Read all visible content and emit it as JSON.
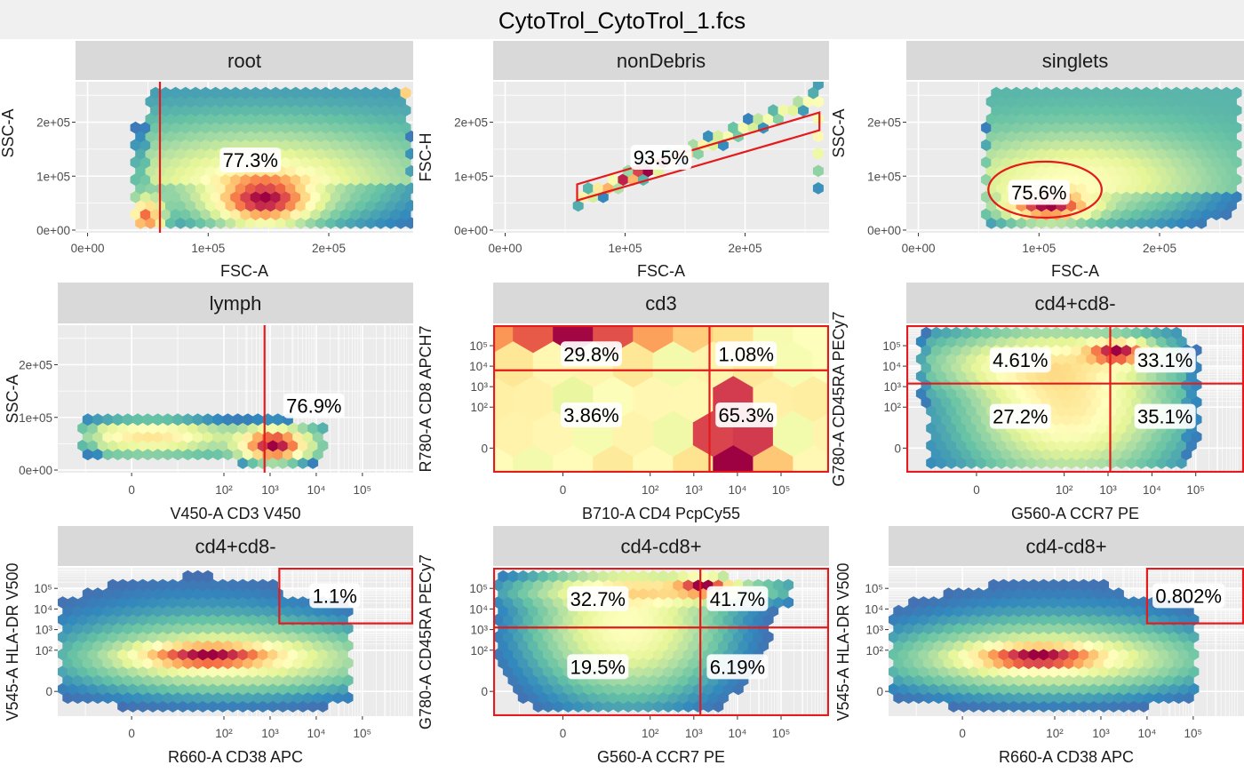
{
  "title": "CytoTrol_CytoTrol_1.fcs",
  "colors": {
    "strip_bg": "#D9D9D9",
    "panel_bg": "#EBEBEB",
    "grid": "#FFFFFF",
    "gate": "#E41A1C",
    "title_bg": "#F0F0F0",
    "density_low": "#5E4FA2",
    "density_mid": "#FFFFBF",
    "density_high": "#9E0142"
  },
  "chart_data": [
    {
      "type": "heatmap",
      "strip": "root",
      "xlabel": "FSC-A",
      "ylabel": "SSC-A",
      "x_ticks": [
        "0e+00",
        "1e+05",
        "2e+05"
      ],
      "y_ticks": [
        "0e+00",
        "1e+05",
        "2e+05"
      ],
      "xlim": [
        -10000,
        270000
      ],
      "ylim": [
        -5000,
        275000
      ],
      "gate": {
        "kind": "vline",
        "x": 60000
      },
      "labels": [
        {
          "text": "77.3%",
          "x": 135000,
          "y": 130000
        }
      ]
    },
    {
      "type": "heatmap",
      "strip": "nonDebris",
      "xlabel": "FSC-A",
      "ylabel": "FSC-H",
      "x_ticks": [
        "0e+00",
        "1e+05",
        "2e+05"
      ],
      "y_ticks": [
        "0e+00",
        "1e+05",
        "2e+05"
      ],
      "xlim": [
        -10000,
        270000
      ],
      "ylim": [
        -5000,
        275000
      ],
      "gate": {
        "kind": "polygon",
        "points": [
          [
            60000,
            55000
          ],
          [
            60000,
            85000
          ],
          [
            262000,
            218000
          ],
          [
            262000,
            185000
          ]
        ]
      },
      "labels": [
        {
          "text": "93.5%",
          "x": 130000,
          "y": 135000
        }
      ]
    },
    {
      "type": "heatmap",
      "strip": "singlets",
      "xlabel": "FSC-A",
      "ylabel": "SSC-A",
      "x_ticks": [
        "0e+00",
        "1e+05",
        "2e+05"
      ],
      "y_ticks": [
        "0e+00",
        "1e+05",
        "2e+05"
      ],
      "xlim": [
        -10000,
        270000
      ],
      "ylim": [
        -5000,
        275000
      ],
      "gate": {
        "kind": "ellipse",
        "cx": 105000,
        "cy": 75000,
        "rx": 47000,
        "ry": 52000
      },
      "labels": [
        {
          "text": "75.6%",
          "x": 100000,
          "y": 70000
        }
      ]
    },
    {
      "type": "heatmap",
      "strip": "lymph",
      "xlabel": "V450-A CD3 V450",
      "ylabel": "SSC-A",
      "x_ticks": [
        "0",
        "10²",
        "10³",
        "10⁴",
        "10⁵"
      ],
      "y_ticks": [
        "0e+00",
        "1e+05",
        "2e+05"
      ],
      "xlim": [
        -1.6,
        6.1
      ],
      "ylim": [
        -5000,
        275000
      ],
      "gate": {
        "kind": "vline",
        "x": 2.88
      },
      "labels": [
        {
          "text": "76.9%",
          "x": 3.95,
          "y": 122000
        }
      ]
    },
    {
      "type": "heatmap",
      "strip": "cd3",
      "xlabel": "B710-A CD4 PcpCy55",
      "ylabel": "R780-A CD8 APCH7",
      "x_ticks": [
        "0",
        "10²",
        "10³",
        "10⁴",
        "10⁵"
      ],
      "y_ticks": [
        "0",
        "10²",
        "10³",
        "10⁴",
        "10⁵"
      ],
      "xlim": [
        -1.6,
        6.1
      ],
      "ylim": [
        -1.2,
        6.0
      ],
      "gate": {
        "kind": "quad",
        "x": 3.36,
        "y": 3.8
      },
      "labels": [
        {
          "text": "29.8%",
          "x": 0.65,
          "y": 4.6
        },
        {
          "text": "1.08%",
          "x": 4.2,
          "y": 4.6
        },
        {
          "text": "3.86%",
          "x": 0.65,
          "y": 1.62
        },
        {
          "text": "65.3%",
          "x": 4.2,
          "y": 1.62
        }
      ]
    },
    {
      "type": "heatmap",
      "strip": "cd4+cd8-",
      "xlabel": "G560-A CCR7 PE",
      "ylabel": "G780-A CD45RA PECy7",
      "x_ticks": [
        "0",
        "10²",
        "10³",
        "10⁴",
        "10⁵"
      ],
      "y_ticks": [
        "0",
        "10²",
        "10³",
        "10⁴",
        "10⁵"
      ],
      "xlim": [
        -1.6,
        6.1
      ],
      "ylim": [
        -1.2,
        6.0
      ],
      "gate": {
        "kind": "quad",
        "x": 3.05,
        "y": 3.15
      },
      "labels": [
        {
          "text": "4.61%",
          "x": 1.0,
          "y": 4.3
        },
        {
          "text": "33.1%",
          "x": 4.3,
          "y": 4.3
        },
        {
          "text": "27.2%",
          "x": 1.0,
          "y": 1.55
        },
        {
          "text": "35.1%",
          "x": 4.3,
          "y": 1.55
        }
      ]
    },
    {
      "type": "heatmap",
      "strip": "cd4+cd8-",
      "xlabel": "R660-A CD38 APC",
      "ylabel": "V545-A HLA-DR V500",
      "x_ticks": [
        "0",
        "10²",
        "10³",
        "10⁴",
        "10⁵"
      ],
      "y_ticks": [
        "0",
        "10²",
        "10³",
        "10⁴",
        "10⁵"
      ],
      "xlim": [
        -1.6,
        6.1
      ],
      "ylim": [
        -1.2,
        6.0
      ],
      "gate": {
        "kind": "rect",
        "x1": 3.2,
        "x2": 6.1,
        "y1": 3.3,
        "y2": 6.0
      },
      "labels": [
        {
          "text": "1.1%",
          "x": 4.4,
          "y": 4.65
        }
      ]
    },
    {
      "type": "heatmap",
      "strip": "cd4-cd8+",
      "xlabel": "G560-A CCR7 PE",
      "ylabel": "G780-A CD45RA PECy7",
      "x_ticks": [
        "0",
        "10²",
        "10³",
        "10⁴",
        "10⁵"
      ],
      "y_ticks": [
        "0",
        "10²",
        "10³",
        "10⁴",
        "10⁵"
      ],
      "xlim": [
        -1.6,
        6.1
      ],
      "ylim": [
        -1.2,
        6.0
      ],
      "gate": {
        "kind": "quad",
        "x": 3.15,
        "y": 3.1
      },
      "labels": [
        {
          "text": "32.7%",
          "x": 0.8,
          "y": 4.5
        },
        {
          "text": "41.7%",
          "x": 4.0,
          "y": 4.5
        },
        {
          "text": "19.5%",
          "x": 0.8,
          "y": 1.2
        },
        {
          "text": "6.19%",
          "x": 4.0,
          "y": 1.2
        }
      ]
    },
    {
      "type": "heatmap",
      "strip": "cd4-cd8+",
      "xlabel": "R660-A CD38 APC",
      "ylabel": "V545-A HLA-DR V500",
      "x_ticks": [
        "0",
        "10²",
        "10³",
        "10⁴",
        "10⁵"
      ],
      "y_ticks": [
        "0",
        "10²",
        "10³",
        "10⁴",
        "10⁵"
      ],
      "xlim": [
        -1.6,
        6.1
      ],
      "ylim": [
        -1.2,
        6.0
      ],
      "gate": {
        "kind": "rect",
        "x1": 4.0,
        "x2": 6.1,
        "y1": 3.3,
        "y2": 6.0
      },
      "labels": [
        {
          "text": "0.802%",
          "x": 4.9,
          "y": 4.65
        }
      ]
    }
  ]
}
